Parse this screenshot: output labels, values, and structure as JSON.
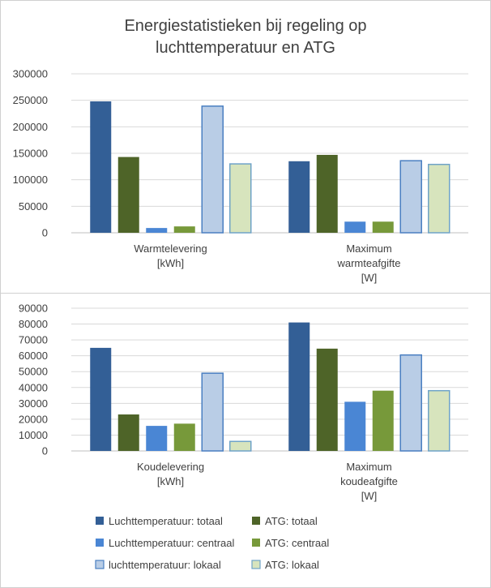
{
  "chart_data": [
    {
      "type": "bar",
      "title_lines": [
        "Energiestatistieken bij regeling op",
        "luchttemperatuur en ATG"
      ],
      "categories": [
        [
          "Warmtelevering",
          "[kWh]"
        ],
        [
          "Maximum",
          "warmteafgifte",
          "[W]"
        ]
      ],
      "ylim": [
        0,
        300000
      ],
      "yticks": [
        "0",
        "50000",
        "100000",
        "150000",
        "200000",
        "250000",
        "300000"
      ],
      "grid": true,
      "series": [
        {
          "name": "Luchttemperatuur: totaal",
          "values": [
            248000,
            135000
          ]
        },
        {
          "name": "ATG: totaal",
          "values": [
            143000,
            147000
          ]
        },
        {
          "name": "Luchttemperatuur: centraal",
          "values": [
            9000,
            21000
          ]
        },
        {
          "name": "ATG: centraal",
          "values": [
            12000,
            21000
          ]
        },
        {
          "name": "luchttemperatuur: lokaal",
          "values": [
            239000,
            136000
          ]
        },
        {
          "name": "ATG: lokaal",
          "values": [
            130000,
            129000
          ]
        }
      ]
    },
    {
      "type": "bar",
      "categories": [
        [
          "Koudelevering",
          "[kWh]"
        ],
        [
          "Maximum",
          "koudeafgifte",
          "[W]"
        ]
      ],
      "ylim": [
        0,
        90000
      ],
      "yticks": [
        "0",
        "10000",
        "20000",
        "30000",
        "40000",
        "50000",
        "60000",
        "70000",
        "80000",
        "90000"
      ],
      "grid": true,
      "legend_position": "bottom",
      "series": [
        {
          "name": "Luchttemperatuur: totaal",
          "values": [
            65000,
            81000
          ]
        },
        {
          "name": "ATG: totaal",
          "values": [
            23000,
            64500
          ]
        },
        {
          "name": "Luchttemperatuur: centraal",
          "values": [
            15800,
            31000
          ]
        },
        {
          "name": "ATG: centraal",
          "values": [
            17200,
            38000
          ]
        },
        {
          "name": "luchttemperatuur: lokaal",
          "values": [
            49000,
            60500
          ]
        },
        {
          "name": "ATG: lokaal",
          "values": [
            6000,
            38000
          ]
        }
      ]
    }
  ],
  "series_colors": [
    "#335f96",
    "#4e6428",
    "#4a86d4",
    "#77993a",
    "#b9cde6",
    "#d7e4bd"
  ],
  "series_borders": [
    "#335f96",
    "#4e6428",
    "#4a86d4",
    "#77993a",
    "#4a7fc1",
    "#6fa3c8"
  ]
}
